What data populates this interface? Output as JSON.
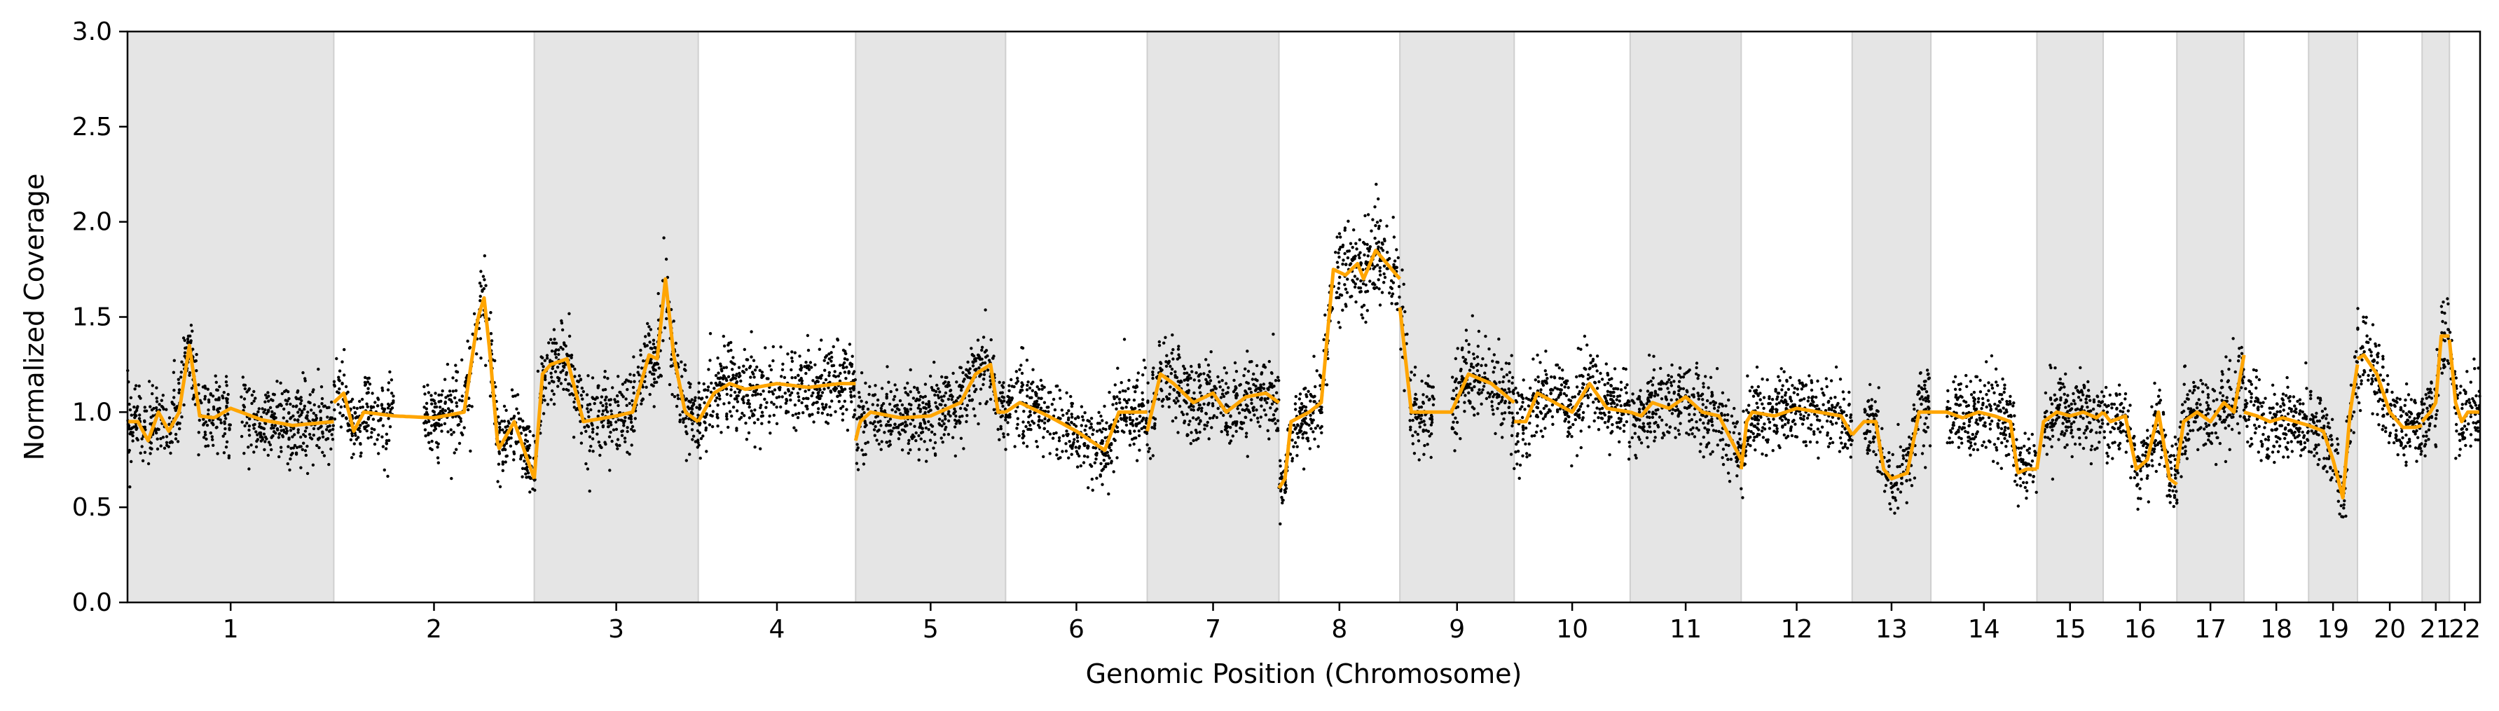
{
  "chart_data": {
    "type": "scatter",
    "xlabel": "Genomic Position (Chromosome)",
    "ylabel": "Normalized Coverage",
    "ylim": [
      0,
      3.0
    ],
    "yticks": [
      "0.0",
      "0.5",
      "1.0",
      "1.5",
      "2.0",
      "2.5",
      "3.0"
    ],
    "grid": false,
    "colors": {
      "points": "#000000",
      "segment_line": "#ffa500",
      "band_shade": "#e5e5e5",
      "band_edge": "#cfcfcf"
    },
    "chromosomes": [
      {
        "label": "1",
        "start": 0,
        "end": 249,
        "shaded": true
      },
      {
        "label": "2",
        "start": 249,
        "end": 491,
        "shaded": false
      },
      {
        "label": "3",
        "start": 491,
        "end": 689,
        "shaded": true
      },
      {
        "label": "4",
        "start": 689,
        "end": 879,
        "shaded": false
      },
      {
        "label": "5",
        "start": 879,
        "end": 1060,
        "shaded": true
      },
      {
        "label": "6",
        "start": 1060,
        "end": 1231,
        "shaded": false
      },
      {
        "label": "7",
        "start": 1231,
        "end": 1390,
        "shaded": true
      },
      {
        "label": "8",
        "start": 1390,
        "end": 1536,
        "shaded": false
      },
      {
        "label": "9",
        "start": 1536,
        "end": 1674,
        "shaded": true
      },
      {
        "label": "10",
        "start": 1674,
        "end": 1814,
        "shaded": false
      },
      {
        "label": "11",
        "start": 1814,
        "end": 1948,
        "shaded": true
      },
      {
        "label": "12",
        "start": 1948,
        "end": 2082,
        "shaded": false
      },
      {
        "label": "13",
        "start": 2082,
        "end": 2177,
        "shaded": true
      },
      {
        "label": "14",
        "start": 2177,
        "end": 2305,
        "shaded": false
      },
      {
        "label": "15",
        "start": 2305,
        "end": 2385,
        "shaded": true
      },
      {
        "label": "16",
        "start": 2385,
        "end": 2474,
        "shaded": false
      },
      {
        "label": "17",
        "start": 2474,
        "end": 2555,
        "shaded": true
      },
      {
        "label": "18",
        "start": 2555,
        "end": 2633,
        "shaded": false
      },
      {
        "label": "19",
        "start": 2633,
        "end": 2692,
        "shaded": true
      },
      {
        "label": "20",
        "start": 2692,
        "end": 2770,
        "shaded": false
      },
      {
        "label": "21",
        "start": 2770,
        "end": 2803,
        "shaded": true
      },
      {
        "label": "22",
        "start": 2803,
        "end": 2840,
        "shaded": false
      }
    ],
    "segments": [
      {
        "chrom": "1",
        "x": [
          0.05,
          0.1,
          0.15,
          0.2,
          0.25,
          0.3,
          0.35,
          0.42,
          0.5,
          0.65,
          0.8,
          1.0
        ],
        "y": [
          0.95,
          0.85,
          1.0,
          0.9,
          1.0,
          1.35,
          0.98,
          0.97,
          1.02,
          0.96,
          0.93,
          0.95
        ],
        "gap": [
          0.5,
          0.55
        ]
      },
      {
        "chrom": "2",
        "x": [
          0.0,
          0.05,
          0.1,
          0.15,
          0.3,
          0.5,
          0.65,
          0.72,
          0.75,
          0.78,
          0.82,
          0.9,
          1.0
        ],
        "y": [
          1.05,
          1.1,
          0.9,
          1.0,
          0.98,
          0.97,
          1.0,
          1.5,
          1.6,
          1.3,
          0.8,
          0.95,
          0.65
        ],
        "gap": [
          0.3,
          0.45
        ]
      },
      {
        "chrom": "3",
        "x": [
          0.0,
          0.05,
          0.1,
          0.2,
          0.3,
          0.5,
          0.6,
          0.7,
          0.75,
          0.8,
          0.85,
          0.92,
          1.0
        ],
        "y": [
          0.65,
          1.2,
          1.25,
          1.28,
          0.95,
          0.98,
          1.0,
          1.3,
          1.28,
          1.7,
          1.3,
          1.0,
          0.95
        ],
        "gap": null
      },
      {
        "chrom": "4",
        "x": [
          0.0,
          0.1,
          0.2,
          0.3,
          0.5,
          0.7,
          0.9,
          1.0
        ],
        "y": [
          0.95,
          1.1,
          1.15,
          1.12,
          1.15,
          1.13,
          1.15,
          1.15
        ],
        "gap": null
      },
      {
        "chrom": "5",
        "x": [
          0.0,
          0.03,
          0.1,
          0.3,
          0.5,
          0.7,
          0.8,
          0.9,
          0.95,
          1.0
        ],
        "y": [
          0.85,
          0.95,
          1.0,
          0.97,
          0.98,
          1.05,
          1.2,
          1.25,
          1.0,
          1.0
        ],
        "gap": null
      },
      {
        "chrom": "6",
        "x": [
          0.0,
          0.1,
          0.3,
          0.5,
          0.6,
          0.7,
          0.8,
          1.0
        ],
        "y": [
          1.0,
          1.05,
          0.98,
          0.9,
          0.85,
          0.8,
          1.0,
          1.0
        ],
        "gap": null
      },
      {
        "chrom": "7",
        "x": [
          0.0,
          0.1,
          0.2,
          0.35,
          0.5,
          0.6,
          0.75,
          0.9,
          1.0
        ],
        "y": [
          0.9,
          1.2,
          1.15,
          1.05,
          1.1,
          1.0,
          1.08,
          1.1,
          1.05
        ],
        "gap": null
      },
      {
        "chrom": "8",
        "x": [
          0.0,
          0.05,
          0.1,
          0.25,
          0.35,
          0.45,
          0.55,
          0.65,
          0.7,
          0.8,
          1.0
        ],
        "y": [
          0.6,
          0.65,
          0.95,
          1.0,
          1.05,
          1.75,
          1.72,
          1.78,
          1.7,
          1.85,
          1.7
        ],
        "gap": null
      },
      {
        "chrom": "9",
        "x": [
          0.0,
          0.1,
          0.2,
          0.3,
          0.45,
          0.6,
          0.8,
          1.0
        ],
        "y": [
          1.55,
          1.0,
          1.0,
          1.0,
          1.0,
          1.2,
          1.15,
          1.05
        ],
        "gap": [
          0.3,
          0.45
        ]
      },
      {
        "chrom": "10",
        "x": [
          0.0,
          0.1,
          0.2,
          0.35,
          0.5,
          0.65,
          0.8,
          1.0
        ],
        "y": [
          0.95,
          0.95,
          1.1,
          1.05,
          1.0,
          1.15,
          1.02,
          1.0
        ],
        "gap": null
      },
      {
        "chrom": "11",
        "x": [
          0.0,
          0.1,
          0.2,
          0.35,
          0.5,
          0.65,
          0.8,
          1.0
        ],
        "y": [
          1.0,
          0.98,
          1.05,
          1.02,
          1.08,
          1.0,
          0.98,
          0.75
        ],
        "gap": null
      },
      {
        "chrom": "12",
        "x": [
          0.0,
          0.05,
          0.1,
          0.3,
          0.5,
          0.7,
          0.9,
          1.0
        ],
        "y": [
          0.7,
          0.95,
          1.0,
          0.98,
          1.02,
          1.0,
          0.98,
          0.88
        ],
        "gap": null
      },
      {
        "chrom": "13",
        "x": [
          0.0,
          0.15,
          0.3,
          0.4,
          0.5,
          0.7,
          0.85,
          1.0
        ],
        "y": [
          0.88,
          0.95,
          0.95,
          0.7,
          0.65,
          0.68,
          1.0,
          1.0
        ],
        "gap": [
          0.0,
          0.15
        ]
      },
      {
        "chrom": "14",
        "x": [
          0.0,
          0.15,
          0.3,
          0.45,
          0.6,
          0.75,
          0.82,
          0.9,
          1.0
        ],
        "y": [
          1.0,
          1.0,
          0.97,
          1.0,
          0.98,
          0.95,
          0.68,
          0.7,
          0.7
        ],
        "gap": [
          0.0,
          0.15
        ]
      },
      {
        "chrom": "15",
        "x": [
          0.0,
          0.1,
          0.3,
          0.5,
          0.7,
          0.9,
          1.0
        ],
        "y": [
          0.7,
          0.95,
          1.0,
          0.98,
          1.0,
          0.97,
          1.0
        ],
        "gap": [
          0.0,
          0.1
        ]
      },
      {
        "chrom": "16",
        "x": [
          0.0,
          0.1,
          0.3,
          0.45,
          0.6,
          0.75,
          0.9,
          1.0
        ],
        "y": [
          1.0,
          0.95,
          0.98,
          0.7,
          0.75,
          1.0,
          0.65,
          0.62
        ],
        "gap": null
      },
      {
        "chrom": "17",
        "x": [
          0.0,
          0.1,
          0.3,
          0.5,
          0.7,
          0.85,
          1.0
        ],
        "y": [
          0.7,
          0.95,
          1.0,
          0.95,
          1.05,
          1.0,
          1.3
        ],
        "gap": null
      },
      {
        "chrom": "18",
        "x": [
          0.0,
          0.2,
          0.4,
          0.6,
          0.8,
          1.0
        ],
        "y": [
          1.0,
          0.98,
          0.95,
          0.97,
          0.95,
          0.93
        ],
        "gap": null
      },
      {
        "chrom": "19",
        "x": [
          0.0,
          0.3,
          0.5,
          0.7,
          0.85,
          1.0
        ],
        "y": [
          0.93,
          0.9,
          0.75,
          0.55,
          1.0,
          1.25
        ],
        "gap": null
      },
      {
        "chrom": "20",
        "x": [
          0.0,
          0.1,
          0.3,
          0.5,
          0.7,
          0.9,
          1.0
        ],
        "y": [
          1.28,
          1.3,
          1.2,
          1.0,
          0.92,
          0.92,
          0.93
        ],
        "gap": null
      },
      {
        "chrom": "21",
        "x": [
          0.0,
          0.3,
          0.5,
          0.7,
          1.0
        ],
        "y": [
          0.95,
          1.0,
          1.05,
          1.4,
          1.4
        ],
        "gap": null
      },
      {
        "chrom": "22",
        "x": [
          0.0,
          0.2,
          0.4,
          0.6,
          0.8,
          1.0
        ],
        "y": [
          1.38,
          1.05,
          0.95,
          1.0,
          1.0,
          1.0
        ],
        "gap": null
      }
    ],
    "noise_sd": 0.1,
    "points_per_chromosome_unit": 2.6
  }
}
